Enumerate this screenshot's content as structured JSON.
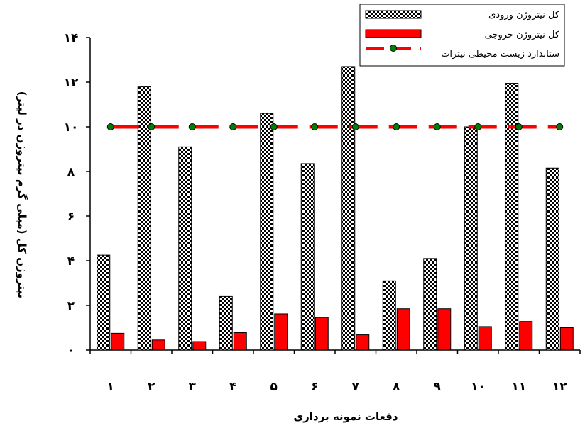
{
  "chart_data": {
    "type": "bar",
    "categories": [
      "۱",
      "۲",
      "۳",
      "۴",
      "۵",
      "۶",
      "۷",
      "۸",
      "۹",
      "۱۰",
      "۱۱",
      "۱۲"
    ],
    "series": [
      {
        "name": "کل نیتروژن ورودی",
        "values": [
          4.25,
          11.8,
          9.1,
          2.4,
          10.6,
          8.35,
          12.7,
          3.1,
          4.1,
          10.0,
          11.95,
          8.15
        ],
        "pattern": "checkerboard"
      },
      {
        "name": "کل نیتروژن خروجی",
        "values": [
          0.75,
          0.45,
          0.38,
          0.78,
          1.62,
          1.46,
          0.68,
          1.85,
          1.85,
          1.05,
          1.28,
          1.0
        ],
        "color": "#ff0000"
      }
    ],
    "standard": {
      "name": "ستاندارد زیست محیطی نیترات",
      "value": 10,
      "line_color": "#ff0000",
      "marker_color": "#008000"
    },
    "ylim": [
      0,
      14
    ],
    "yticks": [
      0,
      2,
      4,
      6,
      8,
      10,
      12,
      14
    ],
    "ytick_labels": [
      "۰",
      "۲",
      "۴",
      "۶",
      "۸",
      "۱۰",
      "۱۲",
      "۱۴"
    ],
    "xlabel": "دفعات نمونه برداری",
    "ylabel": "نیتروژن کل (میلی گرم نیتروژن در لیتر)",
    "legend_position": "top-right",
    "grid": false
  }
}
